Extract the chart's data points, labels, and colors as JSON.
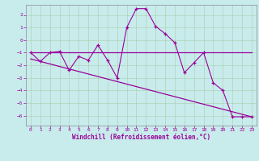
{
  "xlabel": "Windchill (Refroidissement éolien,°C)",
  "ylabel": "",
  "bg_color": "#c8ecec",
  "line_color": "#990099",
  "grid_color": "#aaccaa",
  "x_ticks": [
    0,
    1,
    2,
    3,
    4,
    5,
    6,
    7,
    8,
    9,
    10,
    11,
    12,
    13,
    14,
    15,
    16,
    17,
    18,
    19,
    20,
    21,
    22,
    23
  ],
  "y_ticks": [
    -6,
    -5,
    -4,
    -3,
    -2,
    -1,
    0,
    1,
    2
  ],
  "xlim": [
    -0.5,
    23.5
  ],
  "ylim": [
    -6.8,
    2.8
  ],
  "line1_x": [
    0,
    1,
    2,
    3,
    4,
    5,
    6,
    7,
    8,
    9,
    10,
    11,
    12,
    13,
    14,
    15,
    16,
    17,
    18,
    19,
    20,
    21,
    22,
    23
  ],
  "line1_y": [
    -1.0,
    -1.7,
    -1.0,
    -0.9,
    -2.4,
    -1.3,
    -1.6,
    -0.4,
    -1.6,
    -3.0,
    1.0,
    2.5,
    2.5,
    1.1,
    0.5,
    -0.2,
    -2.6,
    -1.8,
    -1.0,
    -3.4,
    -4.0,
    -6.1,
    -6.1,
    -6.1
  ],
  "line2_x": [
    0,
    23
  ],
  "line2_y": [
    -1.0,
    -1.0
  ],
  "line3_x": [
    0,
    23
  ],
  "line3_y": [
    -1.5,
    -6.1
  ],
  "tick_color": "#990099",
  "label_color": "#990099",
  "xlabel_fontsize": 5.5,
  "tick_fontsize": 4.5
}
